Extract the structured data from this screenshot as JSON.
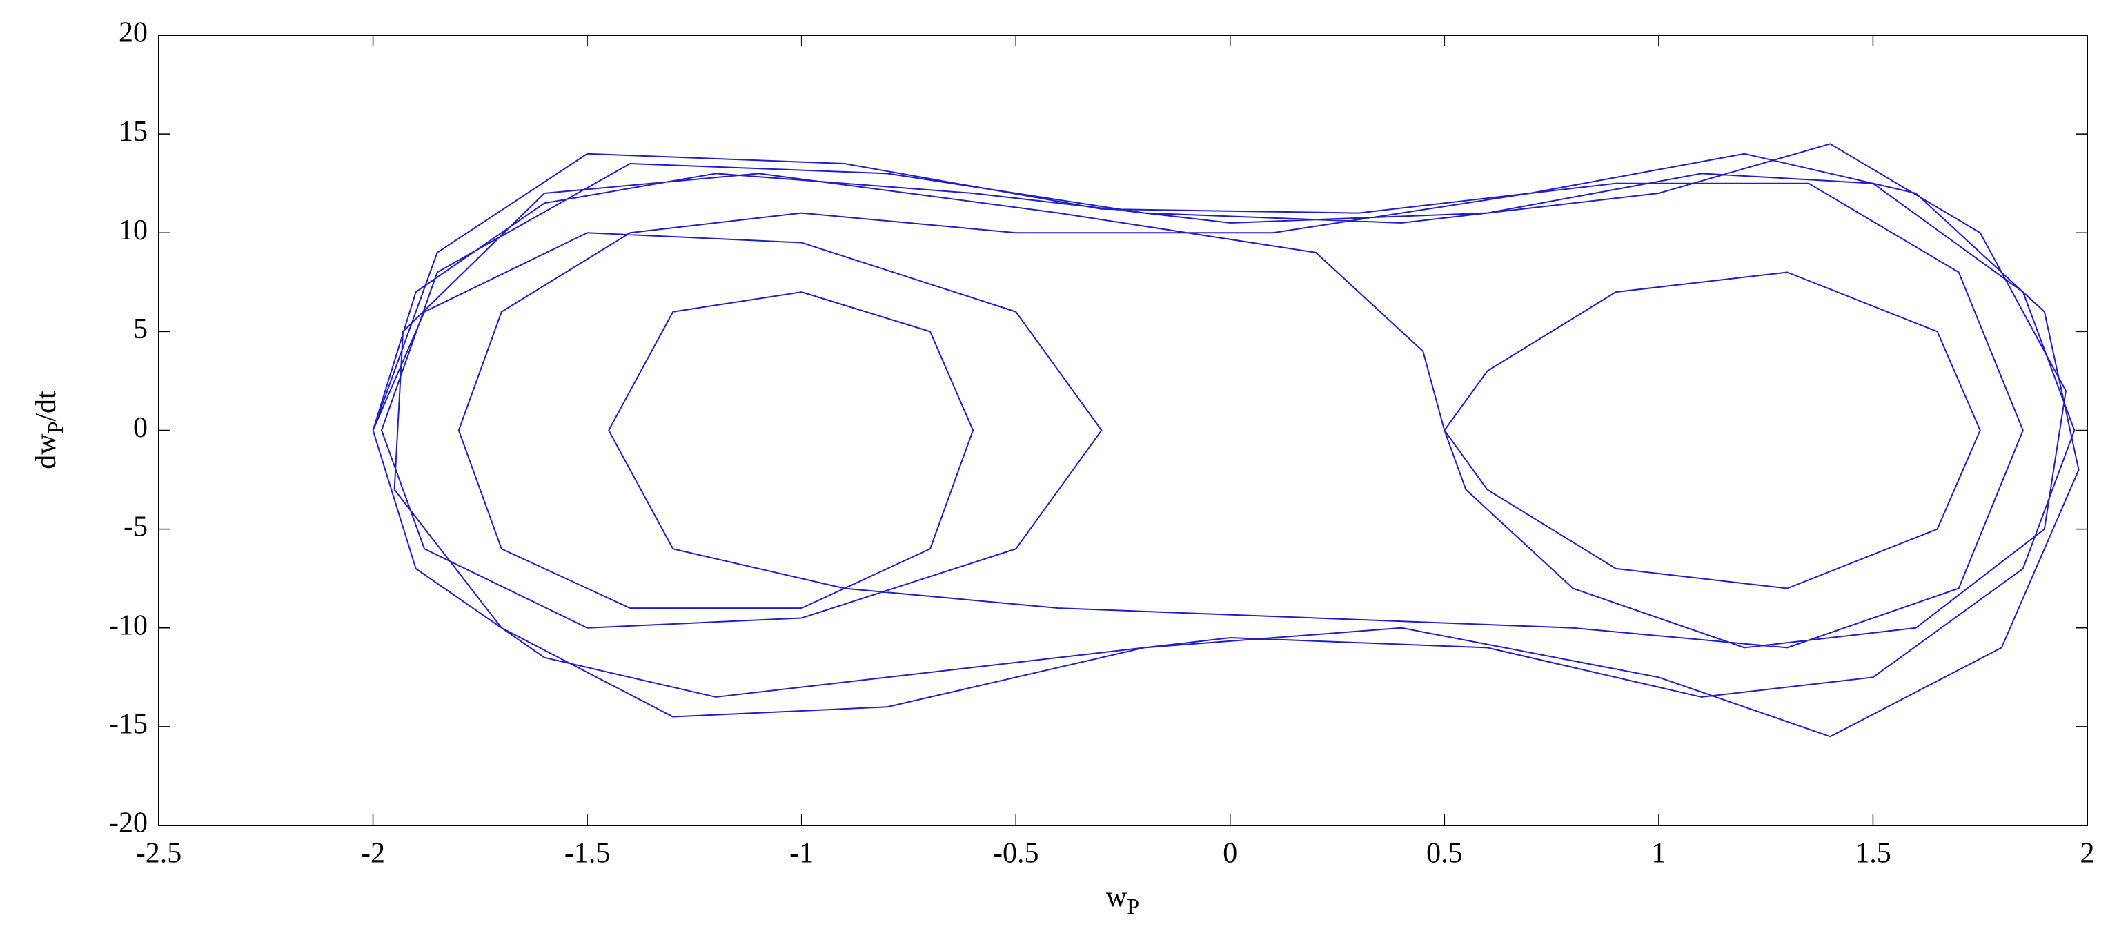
{
  "chart_data": {
    "type": "line",
    "xlabel": {
      "main": "w",
      "sub": "P"
    },
    "ylabel": {
      "main": "dw",
      "sub": "P",
      "tail": "/dt"
    },
    "xlim": [
      -2.5,
      2
    ],
    "ylim": [
      -20,
      20
    ],
    "xticks": [
      -2.5,
      -2,
      -1.5,
      -1,
      -0.5,
      0,
      0.5,
      1,
      1.5,
      2
    ],
    "yticks": [
      -20,
      -15,
      -10,
      -5,
      0,
      5,
      10,
      15,
      20
    ],
    "grid": false,
    "series": [
      {
        "color": "#1f1fc8",
        "x": [
          -2,
          -1.9,
          -1.6,
          -1.2,
          -0.6,
          0,
          0.6,
          1.1,
          1.5,
          1.85,
          1.97,
          1.85,
          1.5,
          1.1,
          0.6,
          0,
          -0.6,
          -1.2,
          -1.6,
          -1.9,
          -2.0,
          -1.88,
          -1.5,
          -1.0,
          -0.5,
          -0.3,
          -0.5,
          -1.0,
          -1.5,
          -1.88,
          -1.98,
          -1.85,
          -1.4,
          -0.8,
          -0.2,
          0.4,
          1.0,
          1.4,
          1.75,
          1.95,
          1.9,
          1.6,
          1.2,
          0.8,
          0.55,
          0.5,
          0.6,
          0.9,
          1.3,
          1.65,
          1.75,
          1.65,
          1.3,
          0.9,
          0.6,
          0.5,
          0.45,
          0.2,
          -0.4,
          -1.1,
          -1.6,
          -1.93,
          -1.95,
          -1.7,
          -1.3,
          -0.8,
          -0.2,
          0.4,
          1.0,
          1.4,
          1.8,
          1.98,
          1.9,
          1.6,
          1.2,
          0.7,
          0.1,
          -0.5,
          -1.0,
          -1.4,
          -1.7,
          -1.8,
          -1.7,
          -1.4,
          -1.0,
          -0.7,
          -0.6,
          -0.7,
          -1.0,
          -1.3,
          -1.45,
          -1.3,
          -0.9,
          -0.4,
          0.2,
          0.8,
          1.3,
          1.7,
          1.85,
          1.7,
          1.35,
          0.9,
          0.3,
          -0.3,
          -0.9,
          -1.5,
          -1.85,
          -2.0
        ],
        "y": [
          0,
          7,
          11.5,
          13,
          12,
          10.5,
          11,
          13,
          12.5,
          7,
          0,
          -7,
          -12.5,
          -13.5,
          -11,
          -10.5,
          -12,
          -13.5,
          -11.5,
          -7,
          0,
          6,
          10,
          9.5,
          6,
          0,
          -6,
          -9.5,
          -10,
          -6,
          0,
          8,
          13.5,
          13,
          11,
          10.5,
          12,
          14.5,
          10,
          2,
          -5,
          -10,
          -11,
          -8,
          -3,
          0,
          3,
          7,
          8,
          5,
          0,
          -5,
          -8,
          -7,
          -3,
          0,
          4,
          9,
          11,
          13,
          12,
          5,
          -3,
          -10,
          -14.5,
          -14,
          -11,
          -10,
          -12.5,
          -15.5,
          -11,
          -2,
          6,
          12,
          14,
          12,
          10,
          10,
          11,
          10,
          6,
          0,
          -6,
          -9,
          -9,
          -6,
          0,
          5,
          7,
          6,
          0,
          -6,
          -8,
          -9,
          -9.5,
          -10,
          -11,
          -8,
          0,
          8,
          12.5,
          12.5,
          11,
          11.2,
          13.5,
          14,
          9,
          0
        ]
      }
    ]
  }
}
